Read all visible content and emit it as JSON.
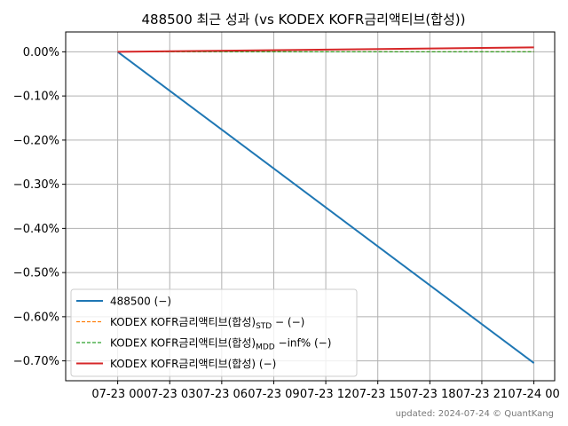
{
  "chart_data": {
    "type": "line",
    "title": "488500 최근  성과 (vs KODEX KOFR금리액티브(합성))",
    "xlabel": "",
    "ylabel": "",
    "x_ticks": [
      "07-23 00",
      "07-23 03",
      "07-23 06",
      "07-23 09",
      "07-23 12",
      "07-23 15",
      "07-23 18",
      "07-23 21",
      "07-24 00"
    ],
    "y_ticks": [
      "0.00%",
      "−0.10%",
      "−0.20%",
      "−0.30%",
      "−0.40%",
      "−0.50%",
      "−0.60%",
      "−0.70%"
    ],
    "y_tick_values": [
      0.0,
      -0.1,
      -0.2,
      -0.3,
      -0.4,
      -0.5,
      -0.6,
      -0.7
    ],
    "ylim": [
      -0.745,
      0.045
    ],
    "xlim_hours": [
      -3,
      25.2
    ],
    "grid": true,
    "legend_position": "lower-left",
    "series": [
      {
        "name": "488500 (−)",
        "color": "#1f77b4",
        "style": "solid",
        "x_hours": [
          0,
          24
        ],
        "values": [
          0.0,
          -0.705
        ]
      },
      {
        "name": "KODEX KOFR금리액티브(합성)STD − (−)",
        "color": "#ff7f0e",
        "style": "dashed",
        "x_hours": [
          0,
          24
        ],
        "values": [
          0.0,
          0.0
        ]
      },
      {
        "name": "KODEX KOFR금리액티브(합성)MDD −inf% (−)",
        "color": "#2ca02c",
        "style": "dashed",
        "x_hours": [
          0,
          24
        ],
        "values": [
          0.0,
          0.0
        ]
      },
      {
        "name": "KODEX KOFR금리액티브(합성) (−)",
        "color": "#d62728",
        "style": "solid",
        "x_hours": [
          0,
          24
        ],
        "values": [
          0.0,
          0.01
        ]
      }
    ],
    "legend": [
      {
        "text": "488500 (−)",
        "sub": "",
        "suffix": ""
      },
      {
        "text": "KODEX KOFR금리액티브(합성)",
        "sub": "STD",
        "suffix": " − (−)"
      },
      {
        "text": "KODEX KOFR금리액티브(합성)",
        "sub": "MDD",
        "suffix": " −inf% (−)"
      },
      {
        "text": "KODEX KOFR금리액티브(합성) (−)",
        "sub": "",
        "suffix": ""
      }
    ]
  },
  "footer": "updated: 2024-07-24 © QuantKang"
}
